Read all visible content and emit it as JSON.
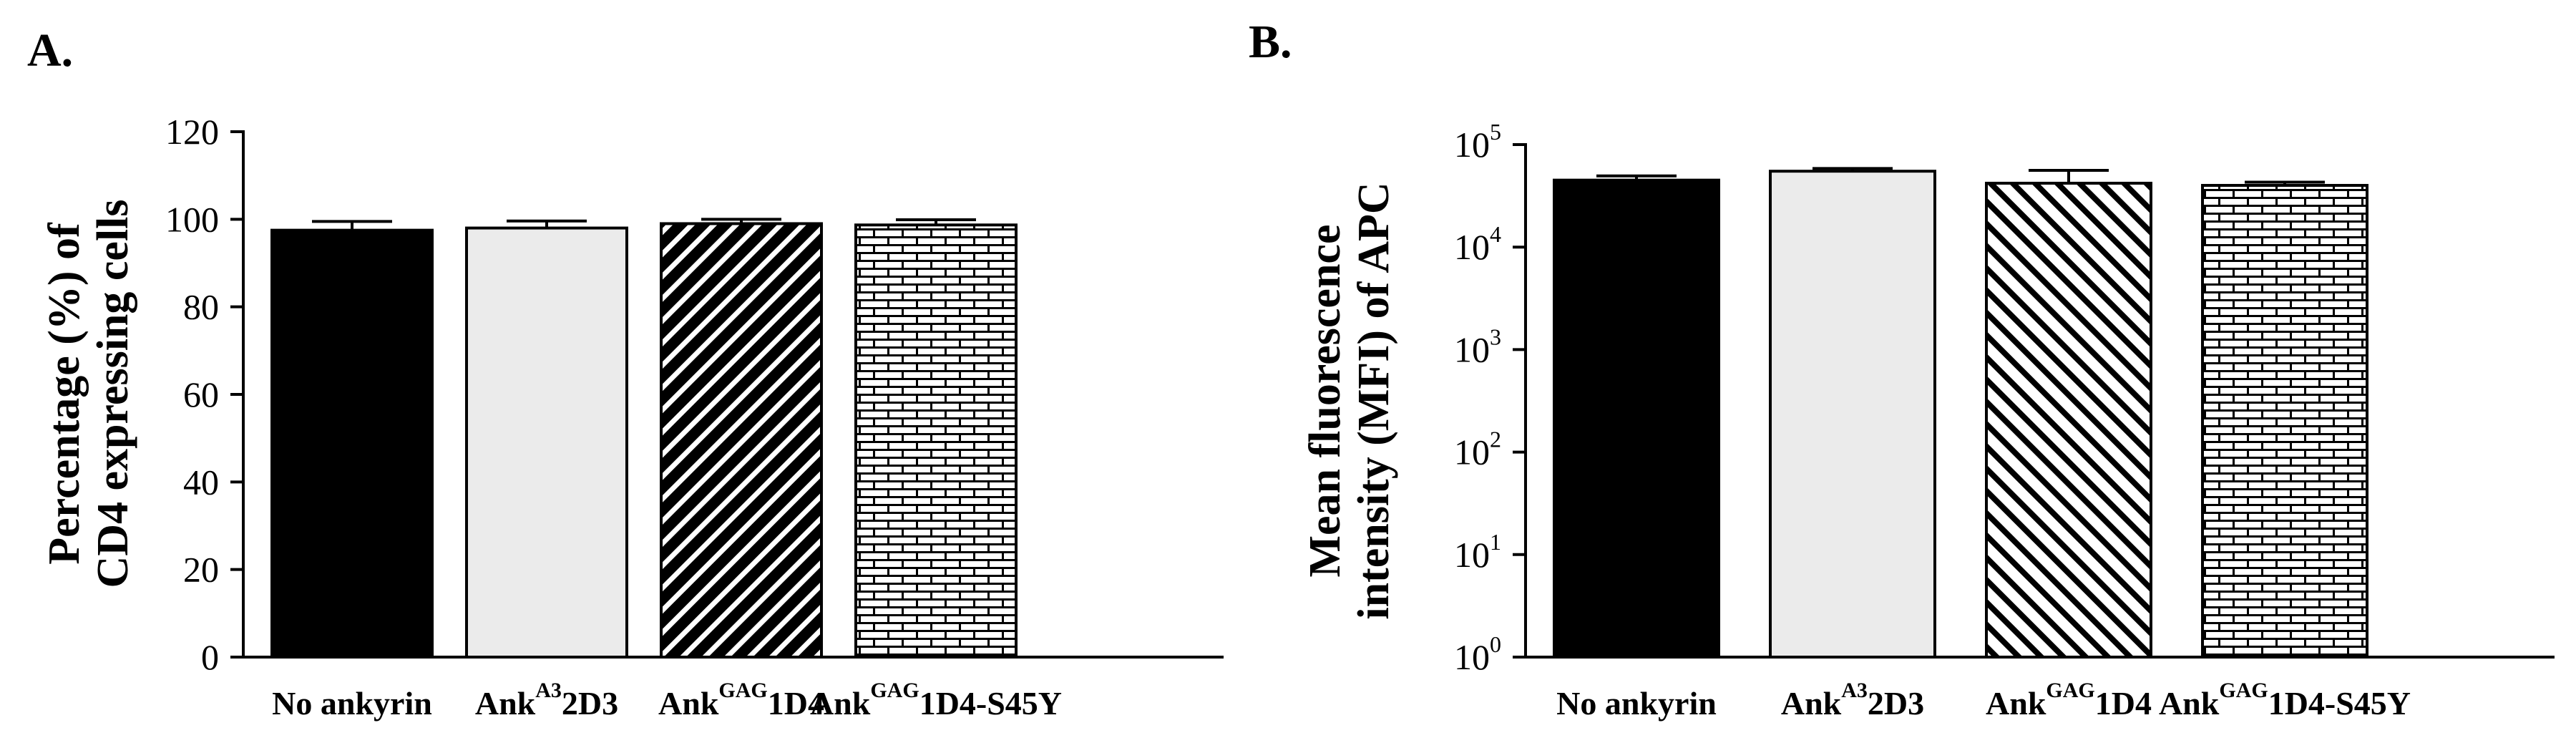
{
  "panels": [
    {
      "letter": "A.",
      "chart_data": {
        "type": "bar",
        "title": "",
        "ylabel": [
          "Percentage (%) of",
          "CD4 expressing cells"
        ],
        "xlabel": "",
        "scale": "linear",
        "ylim": [
          0,
          120
        ],
        "yticks": [
          0,
          20,
          40,
          60,
          80,
          100,
          120
        ],
        "grid": false,
        "categories": [
          {
            "pre": "No ankyrin",
            "sup": "",
            "post": ""
          },
          {
            "pre": "Ank",
            "sup": "A3",
            "post": "2D3"
          },
          {
            "pre": "Ank",
            "sup": "GAG",
            "post": "1D4"
          },
          {
            "pre": "Ank",
            "sup": "GAG",
            "post": "1D4-S45Y"
          }
        ],
        "values": [
          97.5,
          98.0,
          99.0,
          98.7
        ],
        "errors": [
          2.0,
          1.6,
          1.0,
          1.2
        ],
        "fills": [
          "solid-black",
          "light-gray",
          "diagonal-hatch",
          "brick-hatch"
        ]
      }
    },
    {
      "letter": "B.",
      "chart_data": {
        "type": "bar",
        "title": "",
        "ylabel": [
          "Mean fluorescence",
          "intensity (MFI) of APC"
        ],
        "xlabel": "",
        "scale": "log",
        "ylim": [
          1,
          100000
        ],
        "ytick_labels": [
          {
            "base": "10",
            "exp": "0"
          },
          {
            "base": "10",
            "exp": "1"
          },
          {
            "base": "10",
            "exp": "2"
          },
          {
            "base": "10",
            "exp": "3"
          },
          {
            "base": "10",
            "exp": "4"
          },
          {
            "base": "10",
            "exp": "5"
          }
        ],
        "grid": false,
        "categories": [
          {
            "pre": "No ankyrin",
            "sup": "",
            "post": ""
          },
          {
            "pre": "Ank",
            "sup": "A3",
            "post": "2D3"
          },
          {
            "pre": "Ank",
            "sup": "GAG",
            "post": "1D4"
          },
          {
            "pre": "Ank",
            "sup": "GAG",
            "post": "1D4-S45Y"
          }
        ],
        "values": [
          45000,
          55000,
          42000,
          40000
        ],
        "errors": [
          4500,
          3500,
          14000,
          3000
        ],
        "fills": [
          "solid-black",
          "light-gray",
          "diagonal-hatch",
          "brick-hatch"
        ]
      }
    }
  ]
}
